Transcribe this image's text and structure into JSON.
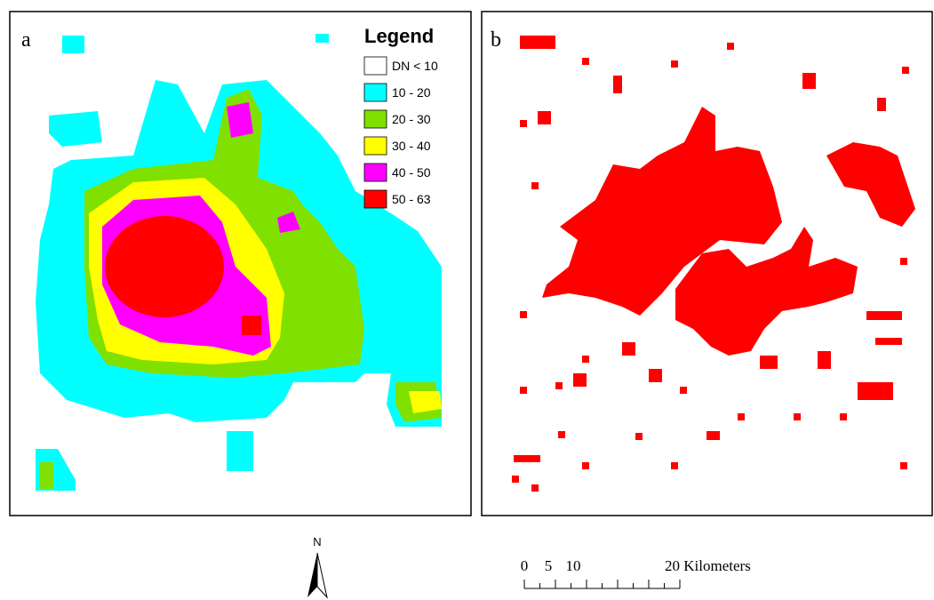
{
  "panels": [
    {
      "label": "a"
    },
    {
      "label": "b"
    }
  ],
  "legend": {
    "title": "Legend",
    "items": [
      {
        "label": "DN < 10",
        "color": "#ffffff"
      },
      {
        "label": "10 - 20",
        "color": "#00ffff"
      },
      {
        "label": "20 - 30",
        "color": "#80e000"
      },
      {
        "label": "30 - 40",
        "color": "#ffff00"
      },
      {
        "label": "40 - 50",
        "color": "#ff00ff"
      },
      {
        "label": "50 - 63",
        "color": "#ff0000"
      }
    ]
  },
  "north_arrow": {
    "label": "N"
  },
  "scale_bar": {
    "labels": [
      "0",
      "5",
      "10",
      "20 Kilometers"
    ]
  }
}
